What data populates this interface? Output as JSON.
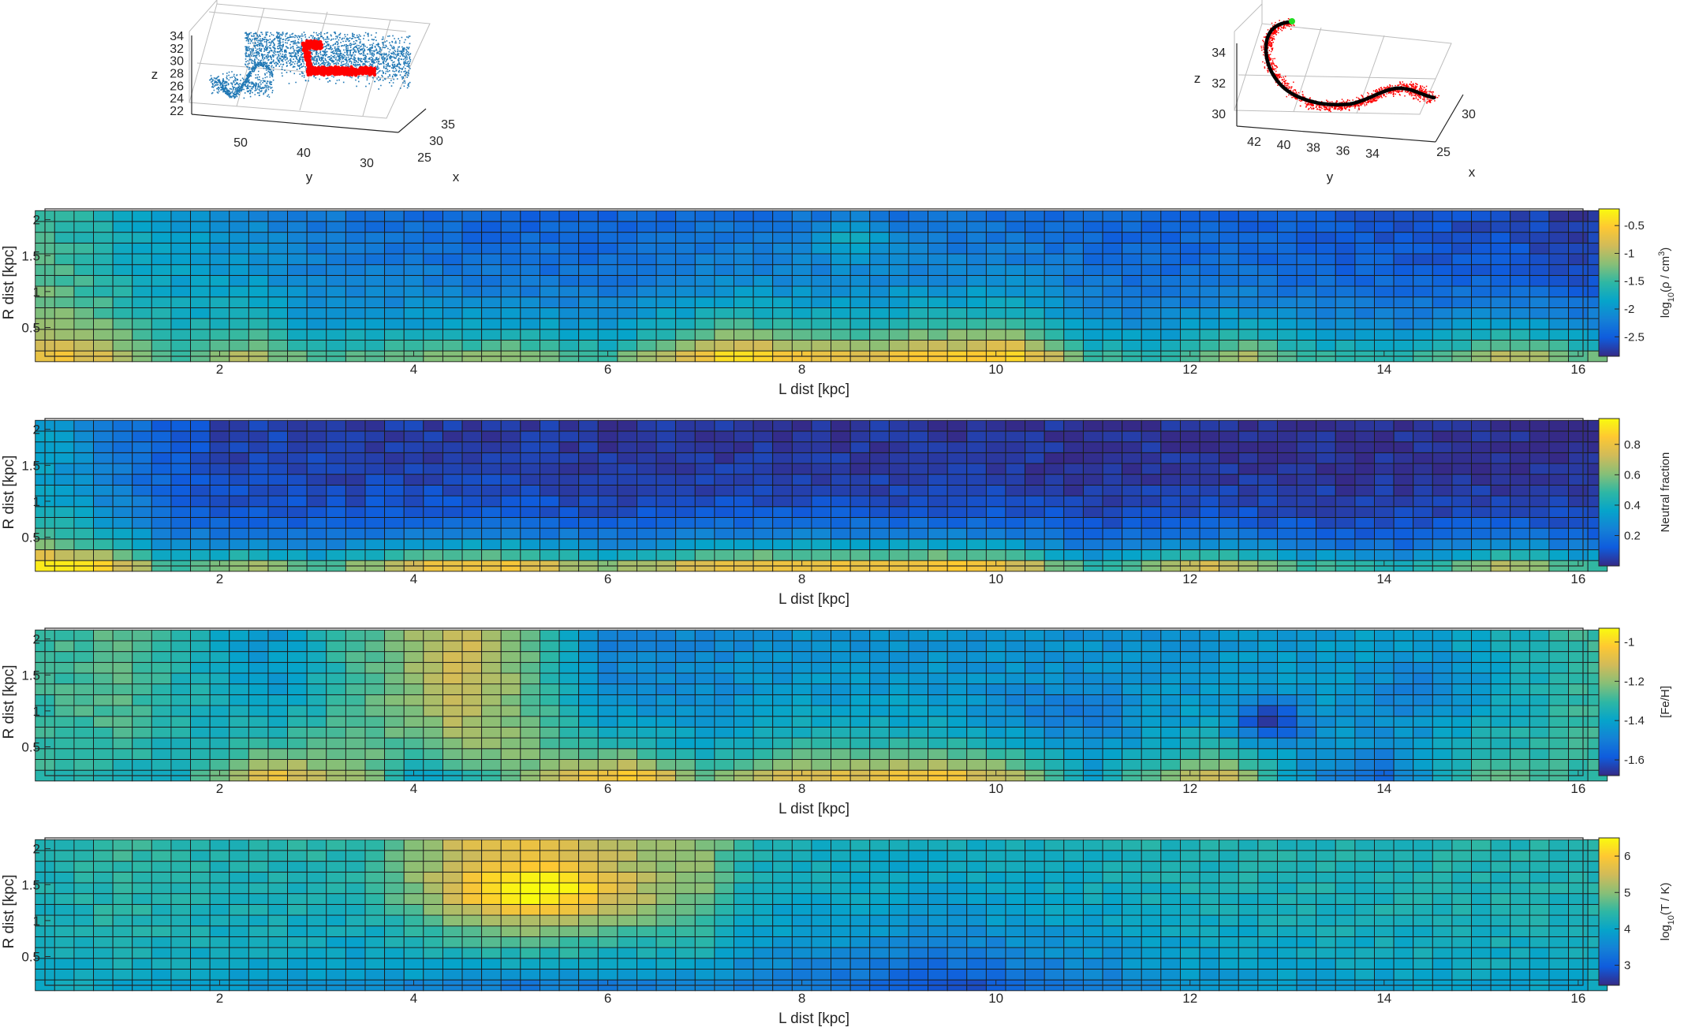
{
  "chart_data": [
    {
      "type": "scatter",
      "panel": "scatter-3d-left",
      "xlabel": "x",
      "ylabel": "y",
      "zlabel": "z",
      "x_ticks": [
        "25",
        "30",
        "35"
      ],
      "y_ticks": [
        "50",
        "40",
        "30"
      ],
      "z_ticks": [
        "22",
        "24",
        "26",
        "28",
        "30",
        "32",
        "34"
      ],
      "series": [
        {
          "role": "all-particles",
          "color": "#1f77b4"
        },
        {
          "role": "selected-filament",
          "color": "#ff0000"
        }
      ]
    },
    {
      "type": "scatter",
      "panel": "scatter-3d-right",
      "xlabel": "x",
      "ylabel": "y",
      "zlabel": "z",
      "x_ticks": [
        "25",
        "30"
      ],
      "y_ticks": [
        "42",
        "40",
        "38",
        "36",
        "34"
      ],
      "z_ticks": [
        "30",
        "32",
        "34"
      ],
      "series": [
        {
          "role": "filament-particles",
          "color": "#ff0000"
        },
        {
          "role": "spine",
          "color": "#000000"
        },
        {
          "role": "endpoint",
          "color": "#22dd22"
        }
      ]
    },
    {
      "type": "heatmap",
      "panel": "density",
      "xlabel": "L dist [kpc]",
      "ylabel": "R dist [kpc]",
      "colorbar_label": "log10(ρ / cm3)",
      "colorbar_label_parts": [
        "log",
        "10",
        "(ρ / cm",
        "3",
        ")"
      ],
      "x_ticks": [
        "2",
        "4",
        "6",
        "8",
        "10",
        "12",
        "14",
        "16"
      ],
      "y_ticks": [
        "0.5",
        "1",
        "1.5",
        "2"
      ],
      "colorbar_ticks": [
        "-2.5",
        "-2",
        "-1.5",
        "-1",
        "-0.5"
      ],
      "clim": [
        -2.85,
        -0.2
      ],
      "xlim": [
        0.2,
        16.05
      ],
      "ylim": [
        0.1,
        2.15
      ],
      "grid": {
        "cols": 81,
        "rows": 14,
        "l_start": 0.2,
        "l_step": 0.2,
        "r_start": 0.1,
        "r_step": 0.15
      },
      "profile_near_axis": [
        [
          0.2,
          -0.6
        ],
        [
          0.8,
          -0.8
        ],
        [
          1.5,
          -1.5
        ],
        [
          2.3,
          -1.0
        ],
        [
          3.0,
          -1.5
        ],
        [
          4.0,
          -1.3
        ],
        [
          5.0,
          -1.1
        ],
        [
          6.0,
          -1.5
        ],
        [
          7.2,
          -0.4
        ],
        [
          8.5,
          -0.8
        ],
        [
          9.5,
          -0.5
        ],
        [
          10.2,
          -0.4
        ],
        [
          11.0,
          -1.5
        ],
        [
          11.7,
          -1.6
        ],
        [
          12.5,
          -1.0
        ],
        [
          13.3,
          -1.5
        ],
        [
          14.2,
          -1.6
        ],
        [
          15.3,
          -0.9
        ],
        [
          16.0,
          -1.3
        ]
      ],
      "profile_top": [
        [
          0.2,
          -1.5
        ],
        [
          1.0,
          -1.8
        ],
        [
          3.0,
          -2.3
        ],
        [
          5.0,
          -2.5
        ],
        [
          8.0,
          -2.4
        ],
        [
          10.0,
          -2.4
        ],
        [
          12.0,
          -2.5
        ],
        [
          14.0,
          -2.6
        ],
        [
          16.0,
          -2.8
        ]
      ],
      "radial_scale_kpc": 0.6,
      "patches": [
        {
          "l": 8.5,
          "r": 1.7,
          "dl": 0.3,
          "dr": 0.2,
          "amp": 0.5
        }
      ]
    },
    {
      "type": "heatmap",
      "panel": "neutral-fraction",
      "xlabel": "L dist [kpc]",
      "ylabel": "R dist [kpc]",
      "colorbar_label": "Neutral fraction",
      "x_ticks": [
        "2",
        "4",
        "6",
        "8",
        "10",
        "12",
        "14",
        "16"
      ],
      "y_ticks": [
        "0.5",
        "1",
        "1.5",
        "2"
      ],
      "colorbar_ticks": [
        "0.2",
        "0.4",
        "0.6",
        "0.8"
      ],
      "clim": [
        0.0,
        0.97
      ],
      "xlim": [
        0.2,
        16.05
      ],
      "ylim": [
        0.1,
        2.15
      ],
      "grid": {
        "cols": 81,
        "rows": 14,
        "l_start": 0.2,
        "l_step": 0.2,
        "r_start": 0.1,
        "r_step": 0.15
      },
      "profile_near_axis": [
        [
          0.2,
          0.95
        ],
        [
          0.8,
          0.85
        ],
        [
          1.5,
          0.5
        ],
        [
          2.3,
          0.65
        ],
        [
          3.0,
          0.5
        ],
        [
          4.2,
          0.78
        ],
        [
          5.0,
          0.8
        ],
        [
          6.0,
          0.6
        ],
        [
          7.5,
          0.82
        ],
        [
          8.5,
          0.8
        ],
        [
          9.5,
          0.85
        ],
        [
          10.2,
          0.75
        ],
        [
          11.0,
          0.45
        ],
        [
          12.3,
          0.75
        ],
        [
          13.2,
          0.5
        ],
        [
          14.2,
          0.4
        ],
        [
          15.3,
          0.7
        ],
        [
          16.0,
          0.5
        ]
      ],
      "profile_top": [
        [
          0.2,
          0.35
        ],
        [
          1.0,
          0.2
        ],
        [
          2.0,
          0.06
        ],
        [
          6.0,
          0.03
        ],
        [
          16.0,
          0.01
        ]
      ],
      "radial_scale_kpc": 0.35,
      "patches": []
    },
    {
      "type": "heatmap",
      "panel": "metallicity",
      "xlabel": "L dist [kpc]",
      "ylabel": "R dist [kpc]",
      "colorbar_label": "[Fe/H]",
      "x_ticks": [
        "2",
        "4",
        "6",
        "8",
        "10",
        "12",
        "14",
        "16"
      ],
      "y_ticks": [
        "0.5",
        "1",
        "1.5",
        "2"
      ],
      "colorbar_ticks": [
        "-1.6",
        "-1.4",
        "-1.2",
        "-1"
      ],
      "clim": [
        -1.68,
        -0.93
      ],
      "xlim": [
        0.2,
        16.05
      ],
      "ylim": [
        0.1,
        2.15
      ],
      "grid": {
        "cols": 81,
        "rows": 14,
        "l_start": 0.2,
        "l_step": 0.2,
        "r_start": 0.1,
        "r_step": 0.15
      },
      "profile_near_axis": [
        [
          0.2,
          -1.3
        ],
        [
          1.5,
          -1.4
        ],
        [
          2.5,
          -1.05
        ],
        [
          3.5,
          -1.2
        ],
        [
          4.0,
          -1.4
        ],
        [
          5.0,
          -1.25
        ],
        [
          6.2,
          -1.0
        ],
        [
          7.0,
          -1.25
        ],
        [
          8.0,
          -1.1
        ],
        [
          9.5,
          -1.05
        ],
        [
          10.2,
          -1.15
        ],
        [
          11.0,
          -1.4
        ],
        [
          12.3,
          -1.1
        ],
        [
          13.2,
          -1.45
        ],
        [
          14.0,
          -1.55
        ],
        [
          15.0,
          -1.25
        ],
        [
          16.0,
          -1.3
        ]
      ],
      "profile_top": [
        [
          0.2,
          -1.3
        ],
        [
          1.0,
          -1.25
        ],
        [
          2.5,
          -1.45
        ],
        [
          4.5,
          -1.1
        ],
        [
          5.0,
          -1.2
        ],
        [
          6.0,
          -1.5
        ],
        [
          8.0,
          -1.45
        ],
        [
          10.0,
          -1.45
        ],
        [
          12.0,
          -1.45
        ],
        [
          14.0,
          -1.4
        ],
        [
          15.5,
          -1.35
        ],
        [
          16.0,
          -1.3
        ]
      ],
      "radial_scale_kpc": 0.45,
      "patches": [
        {
          "l": 12.8,
          "r": 0.85,
          "dl": 0.25,
          "dr": 0.2,
          "amp": -0.25
        },
        {
          "l": 14.5,
          "r": 1.3,
          "dl": 0.5,
          "dr": 0.4,
          "amp": -0.1
        },
        {
          "l": 10.5,
          "r": 0.9,
          "dl": 0.6,
          "dr": 0.3,
          "amp": -0.08
        }
      ]
    },
    {
      "type": "heatmap",
      "panel": "temperature",
      "xlabel": "L dist [kpc]",
      "ylabel": "R dist [kpc]",
      "colorbar_label": "log10(T / K)",
      "colorbar_label_parts": [
        "log",
        "10",
        "(T / K)",
        "",
        ""
      ],
      "x_ticks": [
        "2",
        "4",
        "6",
        "8",
        "10",
        "12",
        "14",
        "16"
      ],
      "y_ticks": [
        "0.5",
        "1",
        "1.5",
        "2"
      ],
      "colorbar_ticks": [
        "3",
        "4",
        "5",
        "6"
      ],
      "clim": [
        2.45,
        6.5
      ],
      "xlim": [
        0.2,
        16.05
      ],
      "ylim": [
        0.1,
        2.15
      ],
      "grid": {
        "cols": 81,
        "rows": 14,
        "l_start": 0.2,
        "l_step": 0.2,
        "r_start": 0.1,
        "r_step": 0.15
      },
      "profile_near_axis": [
        [
          0.2,
          4.1
        ],
        [
          2.0,
          3.9
        ],
        [
          4.0,
          3.6
        ],
        [
          5.0,
          3.4
        ],
        [
          7.0,
          3.5
        ],
        [
          8.5,
          3.2
        ],
        [
          9.5,
          2.8
        ],
        [
          10.5,
          3.2
        ],
        [
          12.0,
          3.7
        ],
        [
          14.0,
          3.9
        ],
        [
          16.0,
          4.0
        ]
      ],
      "profile_top": [
        [
          0.2,
          4.3
        ],
        [
          1.0,
          4.6
        ],
        [
          2.0,
          4.4
        ],
        [
          3.5,
          4.5
        ],
        [
          4.5,
          5.8
        ],
        [
          5.3,
          6.2
        ],
        [
          6.0,
          5.6
        ],
        [
          7.0,
          5.3
        ],
        [
          7.5,
          4.4
        ],
        [
          9.0,
          4.3
        ],
        [
          12.0,
          4.4
        ],
        [
          16.0,
          4.4
        ]
      ],
      "radial_scale_kpc": 1.0,
      "patches": [
        {
          "l": 5.3,
          "r": 1.4,
          "dl": 0.7,
          "dr": 0.25,
          "amp": 1.2
        }
      ]
    }
  ]
}
